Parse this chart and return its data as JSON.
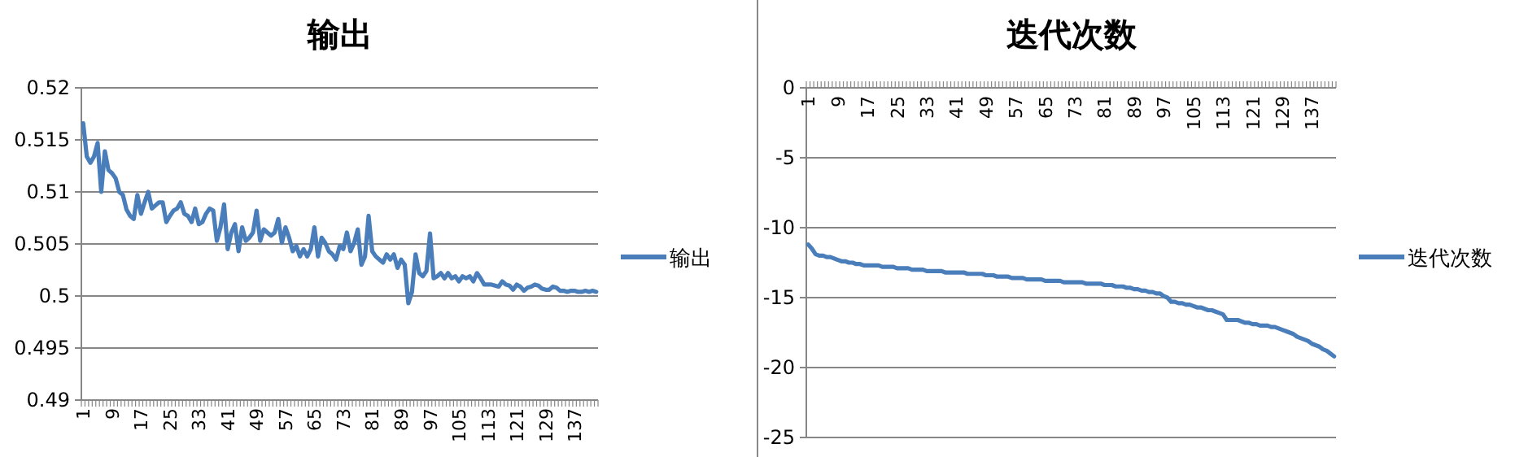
{
  "chart_data": [
    {
      "type": "line",
      "title": "输出",
      "categories": [
        "1",
        null,
        null,
        null,
        null,
        null,
        null,
        null,
        "9",
        null,
        null,
        null,
        null,
        null,
        null,
        null,
        "17",
        null,
        null,
        null,
        null,
        null,
        null,
        null,
        "25",
        null,
        null,
        null,
        null,
        null,
        null,
        null,
        "33",
        null,
        null,
        null,
        null,
        null,
        null,
        null,
        "41",
        null,
        null,
        null,
        null,
        null,
        null,
        null,
        "49",
        null,
        null,
        null,
        null,
        null,
        null,
        null,
        "57",
        null,
        null,
        null,
        null,
        null,
        null,
        null,
        "65",
        null,
        null,
        null,
        null,
        null,
        null,
        null,
        "73",
        null,
        null,
        null,
        null,
        null,
        null,
        null,
        "81",
        null,
        null,
        null,
        null,
        null,
        null,
        null,
        "89",
        null,
        null,
        null,
        null,
        null,
        null,
        null,
        "97",
        null,
        null,
        null,
        null,
        null,
        null,
        null,
        "105",
        null,
        null,
        null,
        null,
        null,
        null,
        null,
        "113",
        null,
        null,
        null,
        null,
        null,
        null,
        null,
        "121",
        null,
        null,
        null,
        null,
        null,
        null,
        null,
        "129",
        null,
        null,
        null,
        null,
        null,
        null,
        null,
        "137",
        null,
        null,
        null,
        null,
        null,
        null
      ],
      "series": [
        {
          "name": "输出",
          "color": "#4a7ebb",
          "values": [
            0.5166,
            0.5134,
            0.5128,
            0.5134,
            0.5147,
            0.51,
            0.5139,
            0.5121,
            0.5118,
            0.5113,
            0.51,
            0.5097,
            0.5083,
            0.5077,
            0.5074,
            0.5097,
            0.5079,
            0.509,
            0.51,
            0.5084,
            0.5087,
            0.509,
            0.509,
            0.5071,
            0.5077,
            0.5082,
            0.5084,
            0.509,
            0.5079,
            0.5077,
            0.5071,
            0.5084,
            0.5069,
            0.5071,
            0.5079,
            0.5084,
            0.5082,
            0.5053,
            0.5066,
            0.5088,
            0.5045,
            0.5061,
            0.5069,
            0.5043,
            0.5066,
            0.5053,
            0.5056,
            0.5061,
            0.5082,
            0.5053,
            0.5064,
            0.5061,
            0.5058,
            0.5061,
            0.5074,
            0.5051,
            0.5066,
            0.5056,
            0.5043,
            0.5048,
            0.5038,
            0.5045,
            0.5038,
            0.5045,
            0.5066,
            0.5038,
            0.5056,
            0.5051,
            0.5043,
            0.504,
            0.5035,
            0.5048,
            0.5045,
            0.5061,
            0.5043,
            0.5051,
            0.5064,
            0.503,
            0.5038,
            0.5077,
            0.5043,
            0.5038,
            0.5035,
            0.5032,
            0.504,
            0.5035,
            0.504,
            0.5027,
            0.5035,
            0.503,
            0.4993,
            0.5004,
            0.504,
            0.5022,
            0.5019,
            0.5024,
            0.506,
            0.5017,
            0.5019,
            0.5022,
            0.5017,
            0.5022,
            0.5017,
            0.5019,
            0.5014,
            0.5019,
            0.5017,
            0.5019,
            0.5014,
            0.5022,
            0.5017,
            0.5011,
            0.5011,
            0.5011,
            0.501,
            0.5009,
            0.5014,
            0.5011,
            0.501,
            0.5006,
            0.5011,
            0.5009,
            0.5005,
            0.5008,
            0.5009,
            0.5011,
            0.501,
            0.5007,
            0.5006,
            0.5006,
            0.5009,
            0.5008,
            0.5005,
            0.5005,
            0.5004,
            0.5005,
            0.5005,
            0.5004,
            0.5004,
            0.5005,
            0.5004,
            0.5005,
            0.5004
          ]
        }
      ],
      "ylim": [
        0.49,
        0.52
      ],
      "yticks": [
        0.49,
        0.495,
        0.5,
        0.505,
        0.51,
        0.515,
        0.52
      ],
      "grid": "y",
      "legend": "right"
    },
    {
      "type": "line",
      "title": "迭代次数",
      "categories": [
        "1",
        null,
        null,
        null,
        null,
        null,
        null,
        null,
        "9",
        null,
        null,
        null,
        null,
        null,
        null,
        null,
        "17",
        null,
        null,
        null,
        null,
        null,
        null,
        null,
        "25",
        null,
        null,
        null,
        null,
        null,
        null,
        null,
        "33",
        null,
        null,
        null,
        null,
        null,
        null,
        null,
        "41",
        null,
        null,
        null,
        null,
        null,
        null,
        null,
        "49",
        null,
        null,
        null,
        null,
        null,
        null,
        null,
        "57",
        null,
        null,
        null,
        null,
        null,
        null,
        null,
        "65",
        null,
        null,
        null,
        null,
        null,
        null,
        null,
        "73",
        null,
        null,
        null,
        null,
        null,
        null,
        null,
        "81",
        null,
        null,
        null,
        null,
        null,
        null,
        null,
        "89",
        null,
        null,
        null,
        null,
        null,
        null,
        null,
        "97",
        null,
        null,
        null,
        null,
        null,
        null,
        null,
        "105",
        null,
        null,
        null,
        null,
        null,
        null,
        null,
        "113",
        null,
        null,
        null,
        null,
        null,
        null,
        null,
        "121",
        null,
        null,
        null,
        null,
        null,
        null,
        null,
        "129",
        null,
        null,
        null,
        null,
        null,
        null,
        null,
        "137",
        null,
        null,
        null,
        null,
        null,
        null
      ],
      "series": [
        {
          "name": "迭代次数",
          "color": "#4a7ebb",
          "values": [
            -11.2,
            -11.5,
            -11.9,
            -12.0,
            -12.0,
            -12.1,
            -12.1,
            -12.2,
            -12.3,
            -12.4,
            -12.4,
            -12.5,
            -12.5,
            -12.6,
            -12.6,
            -12.7,
            -12.7,
            -12.7,
            -12.7,
            -12.7,
            -12.8,
            -12.8,
            -12.8,
            -12.8,
            -12.9,
            -12.9,
            -12.9,
            -12.9,
            -13.0,
            -13.0,
            -13.0,
            -13.0,
            -13.1,
            -13.1,
            -13.1,
            -13.1,
            -13.1,
            -13.2,
            -13.2,
            -13.2,
            -13.2,
            -13.2,
            -13.2,
            -13.3,
            -13.3,
            -13.3,
            -13.3,
            -13.3,
            -13.4,
            -13.4,
            -13.4,
            -13.5,
            -13.5,
            -13.5,
            -13.5,
            -13.6,
            -13.6,
            -13.6,
            -13.6,
            -13.7,
            -13.7,
            -13.7,
            -13.7,
            -13.7,
            -13.8,
            -13.8,
            -13.8,
            -13.8,
            -13.8,
            -13.9,
            -13.9,
            -13.9,
            -13.9,
            -13.9,
            -13.9,
            -14.0,
            -14.0,
            -14.0,
            -14.0,
            -14.0,
            -14.1,
            -14.1,
            -14.1,
            -14.2,
            -14.2,
            -14.2,
            -14.3,
            -14.3,
            -14.4,
            -14.4,
            -14.5,
            -14.5,
            -14.6,
            -14.6,
            -14.7,
            -14.7,
            -14.9,
            -15.0,
            -15.3,
            -15.3,
            -15.4,
            -15.4,
            -15.5,
            -15.5,
            -15.6,
            -15.7,
            -15.7,
            -15.8,
            -15.9,
            -15.9,
            -16.0,
            -16.1,
            -16.2,
            -16.6,
            -16.6,
            -16.6,
            -16.6,
            -16.7,
            -16.8,
            -16.8,
            -16.9,
            -16.9,
            -17.0,
            -17.0,
            -17.0,
            -17.1,
            -17.1,
            -17.2,
            -17.3,
            -17.4,
            -17.5,
            -17.6,
            -17.8,
            -17.9,
            -18.0,
            -18.1,
            -18.3,
            -18.4,
            -18.5,
            -18.7,
            -18.8,
            -19.0,
            -19.2
          ]
        }
      ],
      "ylim": [
        -25,
        0
      ],
      "yticks": [
        -25,
        -20,
        -15,
        -10,
        -5,
        0
      ],
      "grid": "y",
      "legend": "right"
    }
  ]
}
